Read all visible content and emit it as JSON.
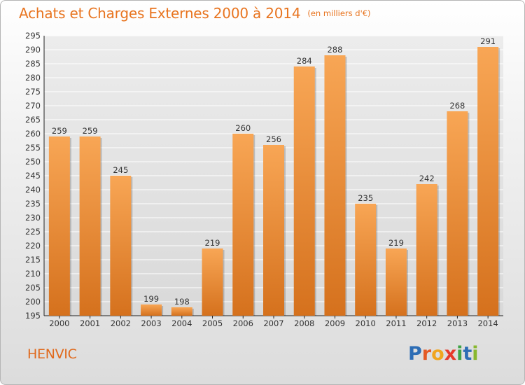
{
  "title": "Achats et Charges Externes 2000 à 2014",
  "unit_note": "(en milliers d'€)",
  "place": "HENVIC",
  "logo": {
    "letters": [
      {
        "char": "P",
        "color": "#2d6db5"
      },
      {
        "char": "r",
        "color": "#e45a24"
      },
      {
        "char": "o",
        "color": "#f0a51f"
      },
      {
        "char": "x",
        "color": "#e6392b"
      },
      {
        "char": "i",
        "color": "#3fa346"
      },
      {
        "char": "t",
        "color": "#2d6db5"
      },
      {
        "char": "i",
        "color": "#88b82f"
      }
    ]
  },
  "colors": {
    "accent": "#e8741f",
    "bar_light": "#f7a653",
    "bar_dark": "#d8731e",
    "grid": "#ffffff"
  },
  "chart_data": {
    "type": "bar",
    "title": "Achats et Charges Externes 2000 à 2014",
    "subtitle": "(en milliers d'€)",
    "categories": [
      "2000",
      "2001",
      "2002",
      "2003",
      "2004",
      "2005",
      "2006",
      "2007",
      "2008",
      "2009",
      "2010",
      "2011",
      "2012",
      "2013",
      "2014"
    ],
    "values": [
      259,
      259,
      245,
      199,
      198,
      219,
      260,
      256,
      284,
      288,
      235,
      219,
      242,
      268,
      291
    ],
    "ylim": [
      195,
      295
    ],
    "yticks": [
      195,
      200,
      205,
      210,
      215,
      220,
      225,
      230,
      235,
      240,
      245,
      250,
      255,
      260,
      265,
      270,
      275,
      280,
      285,
      290,
      295
    ],
    "grid": true,
    "data_labels": true
  }
}
